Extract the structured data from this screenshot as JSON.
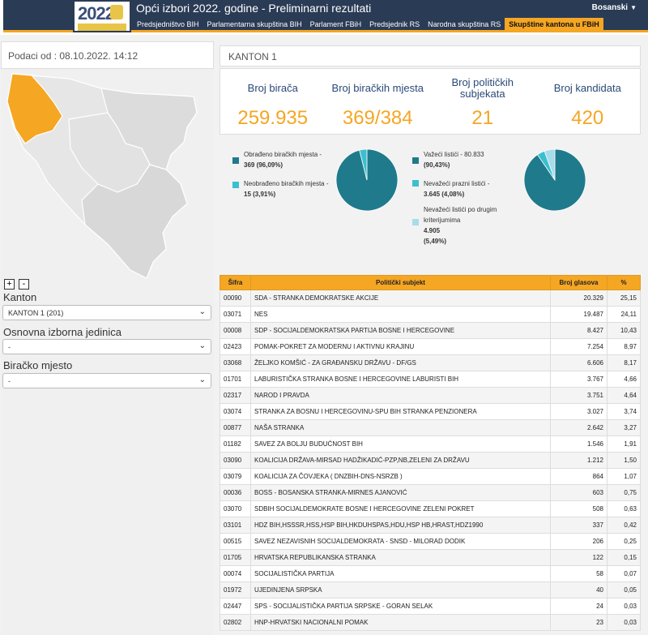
{
  "header": {
    "title": "Opći izbori 2022. godine - Preliminarni rezultati",
    "logo_text": "2022",
    "language": "Bosanski",
    "nav": [
      {
        "label": "Predsjedništvo BIH",
        "active": false
      },
      {
        "label": "Parlamentarna skupština BIH",
        "active": false
      },
      {
        "label": "Parlament FBiH",
        "active": false
      },
      {
        "label": "Predsjednik RS",
        "active": false
      },
      {
        "label": "Narodna skupština RS",
        "active": false
      },
      {
        "label": "Skupštine kantona u FBiH",
        "active": true
      }
    ]
  },
  "left": {
    "date": "Podaci od : 08.10.2022. 14:12",
    "zoom_in": "+",
    "zoom_out": "-",
    "kanton_label": "Kanton",
    "kanton_value": "KANTON 1 (201)",
    "oij_label": "Osnovna izborna jedinica",
    "oij_value": "-",
    "bm_label": "Biračko mjesto",
    "bm_value": "-"
  },
  "main": {
    "kanton_title": "KANTON 1",
    "stats": [
      {
        "label": "Broj birača",
        "value": "259.935"
      },
      {
        "label": "Broj biračkih mjesta",
        "value": "369/384"
      },
      {
        "label": "Broj političkih subjekata",
        "value": "21"
      },
      {
        "label": "Broj kandidata",
        "value": "420"
      }
    ],
    "pie1": {
      "items": [
        {
          "label": "Obrađeno biračkih mjesta -",
          "value": "369 (96,09%)",
          "fraction": 0.9609,
          "color": "#1f7a8c"
        },
        {
          "label": "Neobrađeno biračkih mjesta -",
          "value": "15 (3,91%)",
          "fraction": 0.0391,
          "color": "#3bbfcf"
        }
      ]
    },
    "pie2": {
      "items": [
        {
          "label": "Važeći listići - 80.833",
          "value": "(90,43%)",
          "fraction": 0.9043,
          "color": "#1f7a8c"
        },
        {
          "label": "Nevažeći prazni listići -",
          "value": "3.645 (4,08%)",
          "fraction": 0.0408,
          "color": "#3bbfcf"
        },
        {
          "label": "Nevažeći listići po drugim kriterijumima",
          "value": "4.905",
          "value2": "(5,49%)",
          "fraction": 0.0549,
          "color": "#a8dcea"
        }
      ]
    },
    "table": {
      "headers": [
        "Šifra",
        "Politički subjekt",
        "Broj glasova",
        "%"
      ],
      "rows": [
        [
          "00090",
          "SDA - STRANKA DEMOKRATSKE AKCIJE",
          "20.329",
          "25,15"
        ],
        [
          "03071",
          "NES",
          "19.487",
          "24,11"
        ],
        [
          "00008",
          "SDP - SOCIJALDEMOKRATSKA PARTIJA BOSNE I HERCEGOVINE",
          "8.427",
          "10,43"
        ],
        [
          "02423",
          "POMAK-POKRET ZA MODERNU I AKTIVNU KRAJINU",
          "7.254",
          "8,97"
        ],
        [
          "03068",
          "ŽELJKO KOMŠIĆ - ZA GRAĐANSKU DRŽAVU - DF/GS",
          "6.606",
          "8,17"
        ],
        [
          "01701",
          "LABURISTIČKA STRANKA BOSNE I HERCEGOVINE LABURISTI BIH",
          "3.767",
          "4,66"
        ],
        [
          "02317",
          "NAROD I PRAVDA",
          "3.751",
          "4,64"
        ],
        [
          "03074",
          "STRANKA ZA BOSNU I HERCEGOVINU-SPU BIH STRANKA PENZIONERA",
          "3.027",
          "3,74"
        ],
        [
          "00877",
          "NAŠA STRANKA",
          "2.642",
          "3,27"
        ],
        [
          "01182",
          "SAVEZ ZA BOLJU BUDUĆNOST BIH",
          "1.546",
          "1,91"
        ],
        [
          "03090",
          "KOALICIJA DRŽAVA-MIRSAD HADŽIKADIĆ-PZP,NB,ZELENI ZA DRŽAVU",
          "1.212",
          "1,50"
        ],
        [
          "03079",
          "KOALICIJA ZA ČOVJEKA ( DNZBIH-DNS-NSRZB )",
          "864",
          "1,07"
        ],
        [
          "00036",
          "BOSS - BOSANSKA STRANKA-MIRNES AJANOVIĆ",
          "603",
          "0,75"
        ],
        [
          "03070",
          "SDBIH SOCIJALDEMOKRATE BOSNE I HERCEGOVINE ZELENI POKRET",
          "508",
          "0,63"
        ],
        [
          "03101",
          "HDZ BIH,HSSSR,HSS,HSP BIH,HKDUHSPAS,HDU,HSP HB,HRAST,HDZ1990",
          "337",
          "0,42"
        ],
        [
          "00515",
          "SAVEZ NEZAVISNIH SOCIJALDEMOKRATA - SNSD - MILORAD DODIK",
          "206",
          "0,25"
        ],
        [
          "01705",
          "HRVATSKA REPUBLIKANSKA STRANKA",
          "122",
          "0,15"
        ],
        [
          "00074",
          "SOCIJALISTIČKA PARTIJA",
          "58",
          "0,07"
        ],
        [
          "01972",
          "UJEDINJENA SRPSKA",
          "40",
          "0,05"
        ],
        [
          "02447",
          "SPS - SOCIJALISTIČKA PARTIJA SRPSKE - GORAN SELAK",
          "24",
          "0,03"
        ],
        [
          "02802",
          "HNP-HRVATSKI NACIONALNI POMAK",
          "23",
          "0,03"
        ]
      ]
    }
  }
}
